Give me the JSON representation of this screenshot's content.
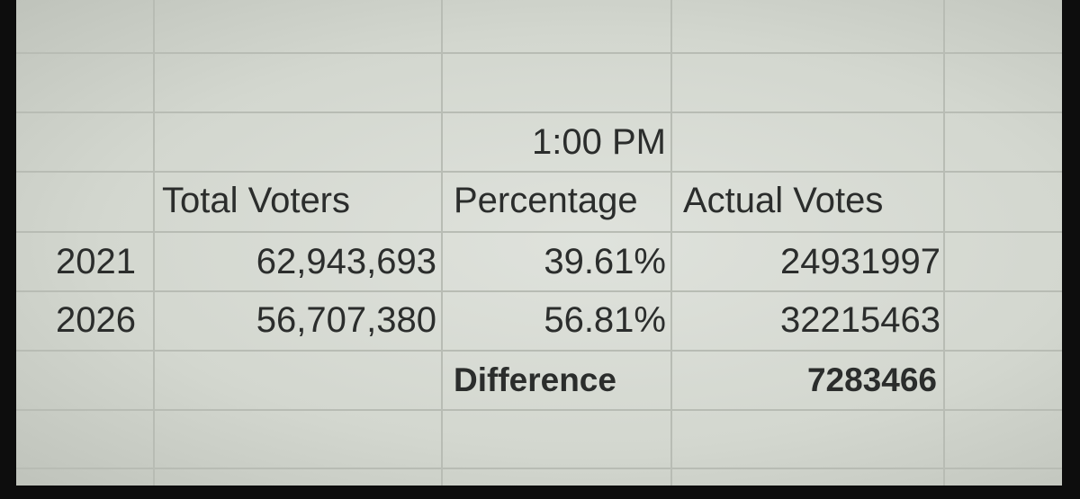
{
  "time": "1:00 PM",
  "headers": [
    "Total Voters",
    "Percentage",
    "Actual Votes"
  ],
  "rows": [
    [
      "2021",
      "62,943,693",
      "39.61%",
      "24931997"
    ],
    [
      "2026",
      "56,707,380",
      "56.81%",
      "32215463"
    ]
  ],
  "summary": {
    "label": "Difference",
    "value": "7283466"
  }
}
